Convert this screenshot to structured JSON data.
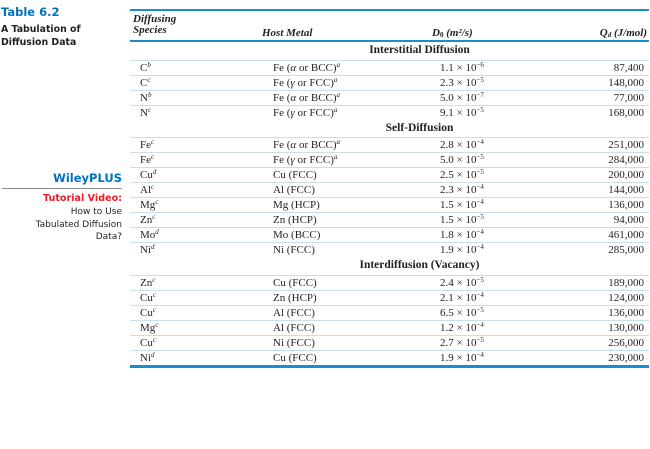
{
  "sidebar": {
    "table_label": "Table 6.2",
    "caption": "A Tabulation of Diffusion Data",
    "wileyplus": "WileyPLUS",
    "tutorial_label": "Tutorial Video:",
    "tutorial_lines": [
      "How to Use",
      "Tabulated Diffusion",
      "Data?"
    ]
  },
  "table": {
    "headers": {
      "species_line1": "Diffusing",
      "species_line2": "Species",
      "host": "Host Metal",
      "d0_label": "D",
      "d0_sub": "0",
      "d0_unit": "(m²/s)",
      "qd_label": "Q",
      "qd_sub": "d",
      "qd_unit": "(J/mol)"
    },
    "sections": [
      {
        "title": "Interstitial Diffusion",
        "rows": [
          {
            "species": "C",
            "note": "b",
            "host_pre": "Fe (",
            "greek": "α",
            "host_post": " or BCC)",
            "host_note": "a",
            "d0": "1.1 × 10",
            "exp": "−6",
            "qd": "87,400"
          },
          {
            "species": "C",
            "note": "c",
            "host_pre": "Fe (",
            "greek": "γ",
            "host_post": " or FCC)",
            "host_note": "a",
            "d0": "2.3 × 10",
            "exp": "−5",
            "qd": "148,000"
          },
          {
            "species": "N",
            "note": "b",
            "host_pre": "Fe (",
            "greek": "α",
            "host_post": " or BCC)",
            "host_note": "a",
            "d0": "5.0 × 10",
            "exp": "−7",
            "qd": "77,000"
          },
          {
            "species": "N",
            "note": "c",
            "host_pre": "Fe (",
            "greek": "γ",
            "host_post": " or FCC)",
            "host_note": "a",
            "d0": "9.1 × 10",
            "exp": "−5",
            "qd": "168,000"
          }
        ]
      },
      {
        "title": "Self-Diffusion",
        "rows": [
          {
            "species": "Fe",
            "note": "c",
            "host_pre": "Fe (",
            "greek": "α",
            "host_post": " or BCC)",
            "host_note": "a",
            "d0": "2.8 × 10",
            "exp": "−4",
            "qd": "251,000"
          },
          {
            "species": "Fe",
            "note": "c",
            "host_pre": "Fe (",
            "greek": "γ",
            "host_post": " or FCC)",
            "host_note": "a",
            "d0": "5.0 × 10",
            "exp": "−5",
            "qd": "284,000"
          },
          {
            "species": "Cu",
            "note": "d",
            "host_pre": "Cu (FCC)",
            "greek": "",
            "host_post": "",
            "host_note": "",
            "d0": "2.5 × 10",
            "exp": "−5",
            "qd": "200,000"
          },
          {
            "species": "Al",
            "note": "c",
            "host_pre": "Al (FCC)",
            "greek": "",
            "host_post": "",
            "host_note": "",
            "d0": "2.3 × 10",
            "exp": "−4",
            "qd": "144,000"
          },
          {
            "species": "Mg",
            "note": "c",
            "host_pre": "Mg (HCP)",
            "greek": "",
            "host_post": "",
            "host_note": "",
            "d0": "1.5 × 10",
            "exp": "−4",
            "qd": "136,000"
          },
          {
            "species": "Zn",
            "note": "c",
            "host_pre": "Zn (HCP)",
            "greek": "",
            "host_post": "",
            "host_note": "",
            "d0": "1.5 × 10",
            "exp": "−5",
            "qd": "94,000"
          },
          {
            "species": "Mo",
            "note": "d",
            "host_pre": "Mo (BCC)",
            "greek": "",
            "host_post": "",
            "host_note": "",
            "d0": "1.8 × 10",
            "exp": "−4",
            "qd": "461,000"
          },
          {
            "species": "Ni",
            "note": "d",
            "host_pre": "Ni (FCC)",
            "greek": "",
            "host_post": "",
            "host_note": "",
            "d0": "1.9 × 10",
            "exp": "−4",
            "qd": "285,000"
          }
        ]
      },
      {
        "title": "Interdiffusion (Vacancy)",
        "rows": [
          {
            "species": "Zn",
            "note": "c",
            "host_pre": "Cu (FCC)",
            "greek": "",
            "host_post": "",
            "host_note": "",
            "d0": "2.4 × 10",
            "exp": "−5",
            "qd": "189,000"
          },
          {
            "species": "Cu",
            "note": "c",
            "host_pre": "Zn (HCP)",
            "greek": "",
            "host_post": "",
            "host_note": "",
            "d0": "2.1 × 10",
            "exp": "−4",
            "qd": "124,000"
          },
          {
            "species": "Cu",
            "note": "c",
            "host_pre": "Al (FCC)",
            "greek": "",
            "host_post": "",
            "host_note": "",
            "d0": "6.5 × 10",
            "exp": "−5",
            "qd": "136,000"
          },
          {
            "species": "Mg",
            "note": "c",
            "host_pre": "Al (FCC)",
            "greek": "",
            "host_post": "",
            "host_note": "",
            "d0": "1.2 × 10",
            "exp": "−4",
            "qd": "130,000"
          },
          {
            "species": "Cu",
            "note": "c",
            "host_pre": "Ni (FCC)",
            "greek": "",
            "host_post": "",
            "host_note": "",
            "d0": "2.7 × 10",
            "exp": "−5",
            "qd": "256,000"
          },
          {
            "species": "Ni",
            "note": "d",
            "host_pre": "Cu (FCC)",
            "greek": "",
            "host_post": "",
            "host_note": "",
            "d0": "1.9 × 10",
            "exp": "−4",
            "qd": "230,000"
          }
        ]
      }
    ]
  },
  "colors": {
    "accent_blue": "#0072bc",
    "rule_blue": "#1c8ccf",
    "row_divider": "#c6def0",
    "tutorial_red": "#ed1c24",
    "text": "#231f20"
  }
}
